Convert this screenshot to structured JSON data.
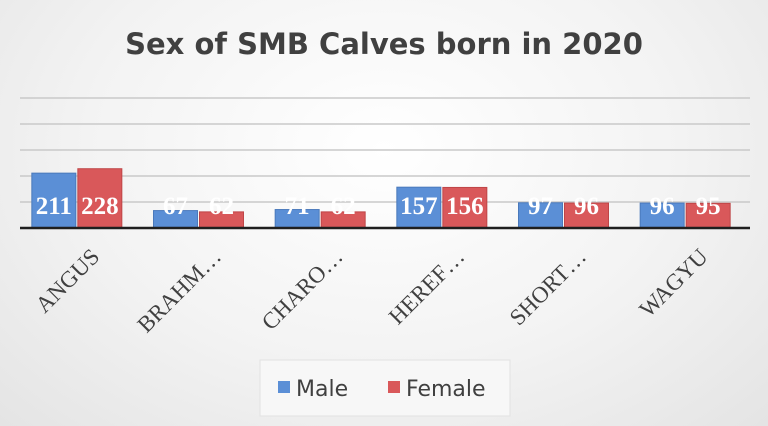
{
  "chart_data": {
    "type": "bar",
    "title": "Sex of SMB Calves born in 2020",
    "categories": [
      "ANGUS",
      "BRAHM…",
      "CHARO…",
      "HEREF…",
      "SHORT…",
      "WAGYU"
    ],
    "series": [
      {
        "name": "Male",
        "values": [
          211,
          67,
          71,
          157,
          97,
          96
        ],
        "color": "#5b8fd6"
      },
      {
        "name": "Female",
        "values": [
          228,
          62,
          62,
          156,
          96,
          95
        ],
        "color": "#d9585a"
      }
    ],
    "ylim": [
      0,
      500
    ],
    "grid": true,
    "data_labels": true,
    "legend": "bottom"
  }
}
